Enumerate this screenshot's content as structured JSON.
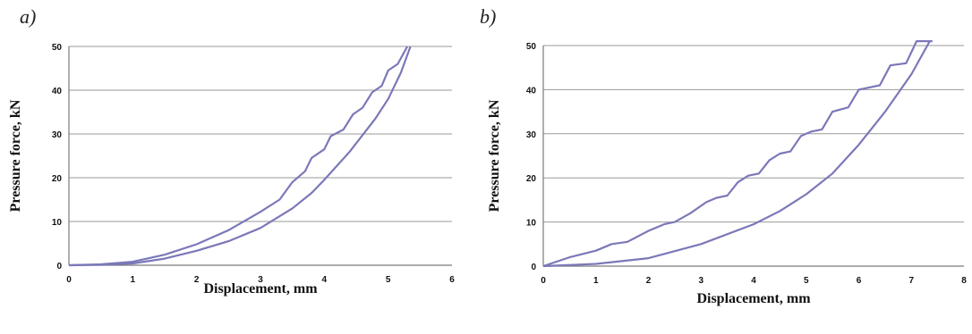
{
  "colors": {
    "curve": "#7b78b8",
    "grid": "#9a9a9a"
  },
  "chart_data": [
    {
      "type": "line",
      "panel_label": "a)",
      "xlabel": "Displacement, mm",
      "ylabel": "Pressure force, kN",
      "xlim": [
        0,
        6
      ],
      "ylim": [
        0,
        50
      ],
      "xticks": [
        0,
        1,
        2,
        3,
        4,
        5,
        6
      ],
      "yticks": [
        0,
        10,
        20,
        30,
        40,
        50
      ],
      "grid": "horizontal",
      "series": [
        {
          "values_xy": [
            [
              0,
              0
            ],
            [
              0.5,
              0.2
            ],
            [
              1,
              0.8
            ],
            [
              1.5,
              2.4
            ],
            [
              2,
              4.8
            ],
            [
              2.5,
              8
            ],
            [
              3,
              12.2
            ],
            [
              3.3,
              15
            ],
            [
              3.5,
              19
            ],
            [
              3.7,
              21.5
            ],
            [
              3.8,
              24.5
            ],
            [
              4,
              26.5
            ],
            [
              4.1,
              29.5
            ],
            [
              4.3,
              31
            ],
            [
              4.45,
              34.5
            ],
            [
              4.6,
              36
            ],
            [
              4.75,
              39.5
            ],
            [
              4.9,
              41
            ],
            [
              5,
              44.5
            ],
            [
              5.15,
              46
            ],
            [
              5.3,
              50
            ]
          ]
        },
        {
          "values_xy": [
            [
              0,
              0
            ],
            [
              0.5,
              0.1
            ],
            [
              1,
              0.4
            ],
            [
              1.5,
              1.5
            ],
            [
              2,
              3.3
            ],
            [
              2.5,
              5.5
            ],
            [
              3,
              8.5
            ],
            [
              3.5,
              13
            ],
            [
              3.8,
              16.5
            ],
            [
              4,
              19.5
            ],
            [
              4.4,
              26
            ],
            [
              4.8,
              33.5
            ],
            [
              5,
              38
            ],
            [
              5.2,
              44
            ],
            [
              5.35,
              50
            ]
          ]
        }
      ]
    },
    {
      "type": "line",
      "panel_label": "b)",
      "xlabel": "Displacement, mm",
      "ylabel": "Pressure force, kN",
      "xlim": [
        0,
        8
      ],
      "ylim": [
        0,
        50
      ],
      "xticks": [
        0,
        1,
        2,
        3,
        4,
        5,
        6,
        7,
        8
      ],
      "yticks": [
        0,
        10,
        20,
        30,
        40,
        50
      ],
      "grid": "horizontal",
      "series": [
        {
          "values_xy": [
            [
              0,
              0
            ],
            [
              0.5,
              2
            ],
            [
              1,
              3.5
            ],
            [
              1.3,
              5
            ],
            [
              1.6,
              5.5
            ],
            [
              2,
              8
            ],
            [
              2.3,
              9.5
            ],
            [
              2.5,
              10
            ],
            [
              2.8,
              12
            ],
            [
              3.1,
              14.5
            ],
            [
              3.3,
              15.5
            ],
            [
              3.5,
              16
            ],
            [
              3.7,
              19
            ],
            [
              3.9,
              20.5
            ],
            [
              4.1,
              21
            ],
            [
              4.3,
              24
            ],
            [
              4.5,
              25.5
            ],
            [
              4.7,
              26
            ],
            [
              4.9,
              29.5
            ],
            [
              5.1,
              30.5
            ],
            [
              5.3,
              31
            ],
            [
              5.5,
              35
            ],
            [
              5.8,
              36
            ],
            [
              6,
              40
            ],
            [
              6.2,
              40.5
            ],
            [
              6.4,
              41
            ],
            [
              6.6,
              45.5
            ],
            [
              6.9,
              46
            ],
            [
              7.1,
              51
            ],
            [
              7.4,
              51
            ]
          ]
        },
        {
          "values_xy": [
            [
              0,
              0
            ],
            [
              1,
              0.5
            ],
            [
              2,
              1.8
            ],
            [
              3,
              5
            ],
            [
              4,
              9.5
            ],
            [
              4.5,
              12.5
            ],
            [
              5,
              16.3
            ],
            [
              5.5,
              21
            ],
            [
              6,
              27.5
            ],
            [
              6.5,
              35
            ],
            [
              7,
              43.5
            ],
            [
              7.35,
              51
            ]
          ]
        }
      ]
    }
  ]
}
